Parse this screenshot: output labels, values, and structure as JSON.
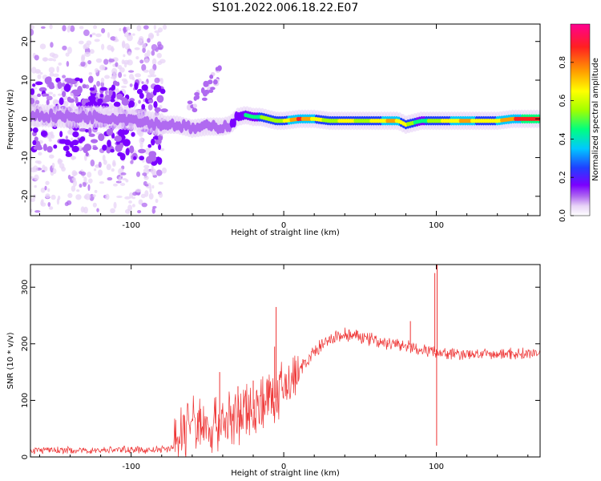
{
  "title": "S101.2022.006.18.22.E07",
  "chart_data": [
    {
      "type": "heatmap",
      "name": "spectrogram",
      "xlabel": "Height of straight line (km)",
      "ylabel": "Frequency (Hz)",
      "xlim": [
        -166,
        168
      ],
      "ylim": [
        -25,
        24.5
      ],
      "xticks": [
        -100,
        0,
        100
      ],
      "xtick_labels": [
        "-100",
        "0",
        "100"
      ],
      "yticks": [
        -20,
        -10,
        0,
        10,
        20
      ],
      "ytick_labels": [
        "-20",
        "-10",
        "0",
        "10",
        "20"
      ],
      "colorbar": {
        "label": "Normalized spectral amplitude",
        "range": [
          0.0,
          1.0
        ],
        "ticks": [
          0.0,
          0.2,
          0.4,
          0.6,
          0.8
        ],
        "tick_labels": [
          "0.0",
          "0.2",
          "0.4",
          "0.6",
          "0.8"
        ],
        "colormap": [
          "#ffffff",
          "#e8d4f7",
          "#b06af0",
          "#7a00ff",
          "#2040ff",
          "#00c8ff",
          "#00ff80",
          "#a0ff00",
          "#ffff00",
          "#ffa000",
          "#ff2020",
          "#ff0090"
        ]
      },
      "ridge": {
        "x": [
          -166,
          -140,
          -120,
          -100,
          -80,
          -70,
          -60,
          -50,
          -40,
          -35,
          -30,
          -25,
          -20,
          -15,
          -10,
          -5,
          0,
          10,
          20,
          30,
          40,
          50,
          60,
          70,
          75,
          80,
          85,
          90,
          100,
          110,
          120,
          130,
          140,
          150,
          160,
          168
        ],
        "y": [
          1.0,
          0.5,
          0.5,
          0.0,
          -1.5,
          -1.5,
          -2.5,
          -2.0,
          -2.0,
          -1.5,
          0.5,
          1.0,
          0.5,
          0.5,
          0.0,
          -0.5,
          -0.5,
          0.0,
          0.0,
          -0.5,
          -0.5,
          -0.5,
          -0.5,
          -0.5,
          -0.5,
          -1.5,
          -1.0,
          -0.5,
          -0.5,
          -0.5,
          -0.5,
          -0.5,
          -0.5,
          0.0,
          0.0,
          0.0
        ],
        "amplitude": [
          0.3,
          0.3,
          0.3,
          0.3,
          0.35,
          0.4,
          0.4,
          0.4,
          0.4,
          0.4,
          0.5,
          0.55,
          0.5,
          0.6,
          0.65,
          0.6,
          0.7,
          0.9,
          0.75,
          0.6,
          0.75,
          0.65,
          0.7,
          0.8,
          0.75,
          0.7,
          0.6,
          0.55,
          0.65,
          0.75,
          0.8,
          0.7,
          0.75,
          0.85,
          0.95,
          0.95
        ]
      }
    },
    {
      "type": "line",
      "name": "snr",
      "xlabel": "Height of straight line (km)",
      "ylabel": "SNR (10 * v/v)",
      "xlim": [
        -166,
        168
      ],
      "ylim": [
        0,
        340
      ],
      "xticks": [
        -100,
        0,
        100
      ],
      "xtick_labels": [
        "-100",
        "0",
        "100"
      ],
      "yticks": [
        0,
        100,
        200,
        300
      ],
      "ytick_labels": [
        "0",
        "100",
        "200",
        "300"
      ],
      "line_color": "#ee3333",
      "series": [
        {
          "x": [
            -166,
            -150,
            -130,
            -110,
            -90,
            -75,
            -70,
            -65,
            -60,
            -55,
            -50,
            -45,
            -40,
            -35,
            -30,
            -25,
            -20,
            -15,
            -10,
            -5,
            0,
            5,
            10,
            15,
            20,
            25,
            30,
            35,
            40,
            45,
            50,
            55,
            60,
            65,
            70,
            75,
            80,
            85,
            90,
            95,
            100,
            105,
            110,
            120,
            130,
            140,
            150,
            160,
            168
          ],
          "y": [
            12,
            12,
            11,
            13,
            12,
            14,
            25,
            55,
            60,
            55,
            55,
            60,
            65,
            65,
            70,
            75,
            85,
            95,
            100,
            105,
            120,
            135,
            150,
            170,
            185,
            195,
            205,
            212,
            215,
            214,
            212,
            210,
            205,
            202,
            200,
            198,
            195,
            193,
            190,
            188,
            185,
            183,
            182,
            182,
            181,
            182,
            183,
            183,
            184
          ]
        }
      ],
      "spikes": [
        {
          "x": -42,
          "y": 150
        },
        {
          "x": -30,
          "y": 125
        },
        {
          "x": -20,
          "y": 135
        },
        {
          "x": -6,
          "y": 195
        },
        {
          "x": -5,
          "y": 265
        },
        {
          "x": 83,
          "y": 240
        },
        {
          "x": 99,
          "y": 325
        },
        {
          "x": 100.5,
          "y": 340
        },
        {
          "x": 100.2,
          "y": 20
        }
      ]
    }
  ]
}
